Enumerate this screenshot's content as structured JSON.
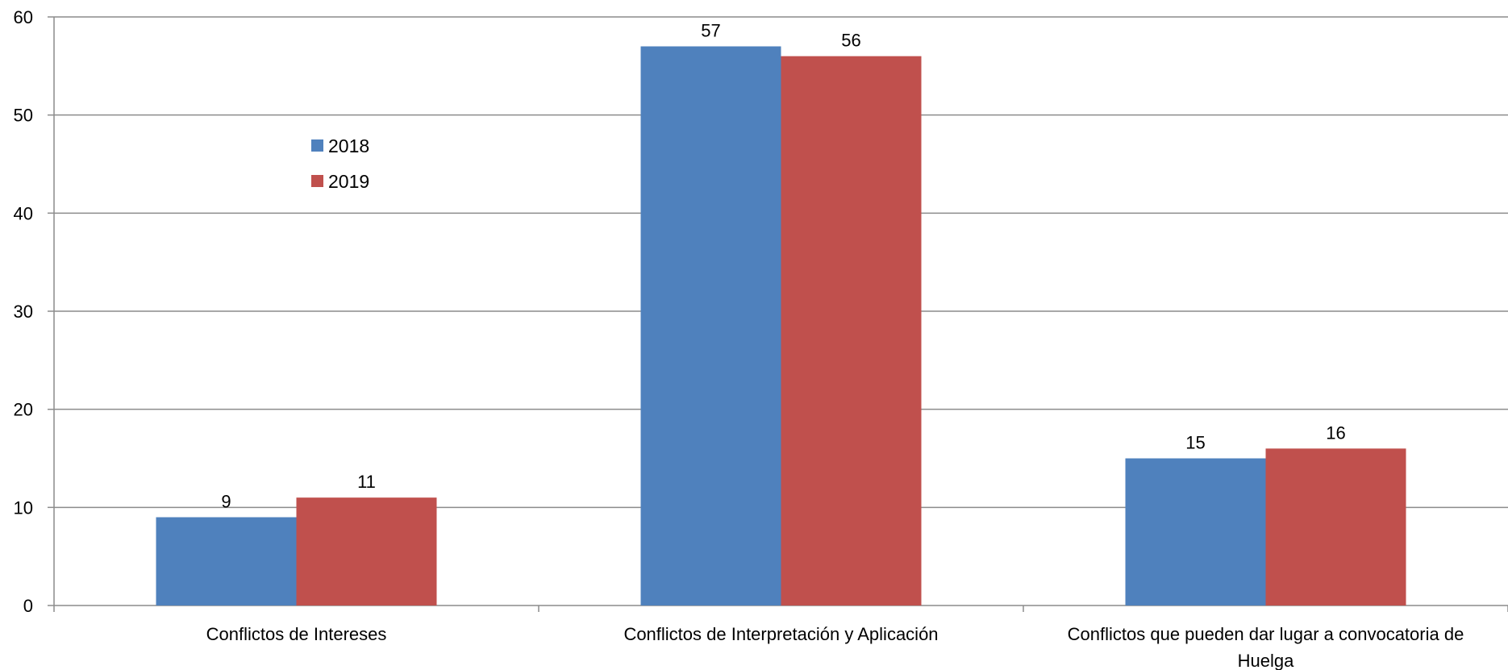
{
  "chart_data": {
    "type": "bar",
    "title": "",
    "xlabel": "",
    "ylabel": "",
    "categories": [
      [
        "Conflictos de Intereses"
      ],
      [
        "Conflictos de Interpretación y Aplicación"
      ],
      [
        "Conflictos que pueden dar lugar a convocatoria de",
        "Huelga"
      ]
    ],
    "series": [
      {
        "name": "2018",
        "color": "#4F81BD",
        "values": [
          9,
          57,
          15
        ]
      },
      {
        "name": "2019",
        "color": "#C0504D",
        "values": [
          11,
          56,
          16
        ]
      }
    ],
    "ylim": [
      0,
      60
    ],
    "yticks": [
      0,
      10,
      20,
      30,
      40,
      50,
      60
    ],
    "grid": true,
    "legend": "upper-left"
  }
}
